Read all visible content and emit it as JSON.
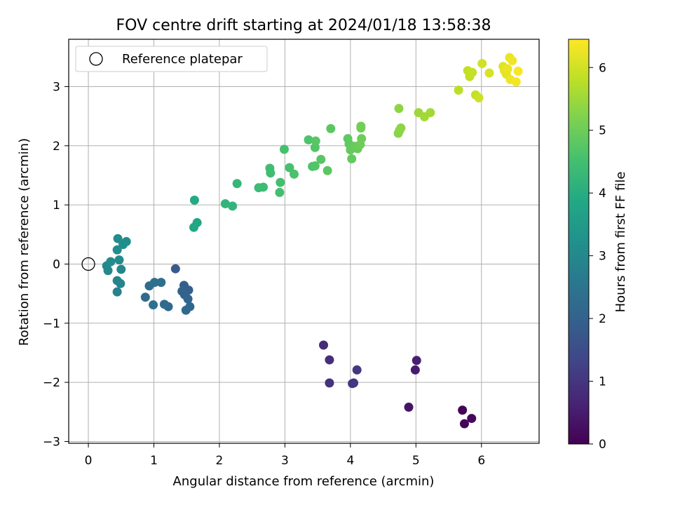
{
  "chart_data": {
    "type": "scatter",
    "title": "FOV centre drift starting at 2024/01/18 13:58:38",
    "xlabel": "Angular distance from reference (arcmin)",
    "ylabel": "Rotation from reference (arcmin)",
    "xlim": [
      -0.3,
      6.88
    ],
    "ylim": [
      -3.03,
      3.8
    ],
    "xticks": [
      0,
      1,
      2,
      3,
      4,
      5,
      6
    ],
    "yticks": [
      -3,
      -2,
      -1,
      0,
      1,
      2,
      3
    ],
    "grid": true,
    "legend": {
      "position": "top-left",
      "entries": [
        "Reference platepar"
      ]
    },
    "reference_point": {
      "x": 0,
      "y": 0
    },
    "colorbar": {
      "label": "Hours from first FF file",
      "min": 0,
      "max": 6.45,
      "ticks": [
        0,
        1,
        2,
        3,
        4,
        5,
        6
      ],
      "colormap": "viridis"
    },
    "points": [
      [
        5.71,
        -2.47,
        0.05
      ],
      [
        5.74,
        -2.7,
        0.1
      ],
      [
        5.85,
        -2.61,
        0.15
      ],
      [
        4.89,
        -2.42,
        0.35
      ],
      [
        4.99,
        -1.79,
        0.5
      ],
      [
        5.01,
        -1.63,
        0.55
      ],
      [
        3.59,
        -1.37,
        0.8
      ],
      [
        3.68,
        -1.62,
        0.85
      ],
      [
        3.68,
        -2.01,
        0.9
      ],
      [
        4.03,
        -2.02,
        0.95
      ],
      [
        4.05,
        -2.01,
        1.0
      ],
      [
        4.1,
        -1.79,
        1.05
      ],
      [
        1.33,
        -0.08,
        1.85
      ],
      [
        1.46,
        -0.36,
        1.9
      ],
      [
        1.53,
        -0.44,
        1.95
      ],
      [
        1.43,
        -0.46,
        2.0
      ],
      [
        1.47,
        -0.52,
        2.05
      ],
      [
        1.52,
        -0.59,
        2.1
      ],
      [
        1.55,
        -0.72,
        2.15
      ],
      [
        1.49,
        -0.78,
        2.2
      ],
      [
        1.22,
        -0.72,
        2.2
      ],
      [
        1.16,
        -0.68,
        2.25
      ],
      [
        0.87,
        -0.56,
        2.25
      ],
      [
        0.93,
        -0.37,
        2.3
      ],
      [
        1.01,
        -0.31,
        2.35
      ],
      [
        1.11,
        -0.31,
        2.35
      ],
      [
        0.99,
        -0.69,
        2.4
      ],
      [
        0.44,
        -0.47,
        2.85
      ],
      [
        0.44,
        -0.28,
        2.9
      ],
      [
        0.49,
        -0.33,
        2.9
      ],
      [
        0.5,
        -0.09,
        2.95
      ],
      [
        0.3,
        -0.11,
        3.0
      ],
      [
        0.28,
        -0.03,
        3.0
      ],
      [
        0.34,
        0.04,
        3.05
      ],
      [
        0.47,
        0.07,
        3.05
      ],
      [
        0.44,
        0.24,
        3.1
      ],
      [
        0.45,
        0.43,
        3.1
      ],
      [
        0.53,
        0.33,
        3.15
      ],
      [
        0.58,
        0.38,
        3.15
      ],
      [
        1.61,
        0.62,
        3.85
      ],
      [
        1.66,
        0.7,
        3.85
      ],
      [
        1.62,
        1.08,
        3.9
      ],
      [
        2.09,
        1.02,
        4.2
      ],
      [
        2.2,
        0.98,
        4.2
      ],
      [
        2.27,
        1.36,
        4.25
      ],
      [
        2.6,
        1.29,
        4.4
      ],
      [
        2.67,
        1.3,
        4.4
      ],
      [
        2.77,
        1.62,
        4.45
      ],
      [
        2.78,
        1.54,
        4.45
      ],
      [
        2.92,
        1.21,
        4.5
      ],
      [
        2.93,
        1.38,
        4.5
      ],
      [
        2.99,
        1.94,
        4.55
      ],
      [
        3.07,
        1.63,
        4.55
      ],
      [
        3.14,
        1.52,
        4.6
      ],
      [
        3.36,
        2.1,
        4.65
      ],
      [
        3.42,
        1.65,
        4.65
      ],
      [
        3.46,
        1.66,
        4.7
      ],
      [
        3.46,
        1.97,
        4.7
      ],
      [
        3.47,
        2.08,
        4.75
      ],
      [
        3.55,
        1.77,
        4.75
      ],
      [
        3.65,
        1.58,
        4.8
      ],
      [
        3.7,
        2.29,
        4.8
      ],
      [
        3.96,
        2.12,
        4.85
      ],
      [
        3.98,
        2.03,
        4.85
      ],
      [
        4.0,
        1.93,
        4.9
      ],
      [
        4.02,
        1.78,
        4.9
      ],
      [
        4.07,
        1.99,
        4.95
      ],
      [
        4.11,
        1.95,
        4.95
      ],
      [
        4.15,
        2.02,
        5.0
      ],
      [
        4.17,
        2.12,
        5.0
      ],
      [
        4.16,
        2.3,
        5.05
      ],
      [
        4.16,
        2.33,
        5.05
      ],
      [
        4.73,
        2.21,
        5.3
      ],
      [
        4.75,
        2.26,
        5.3
      ],
      [
        4.77,
        2.3,
        5.35
      ],
      [
        4.74,
        2.63,
        5.35
      ],
      [
        5.04,
        2.56,
        5.5
      ],
      [
        5.13,
        2.49,
        5.55
      ],
      [
        5.22,
        2.56,
        5.55
      ],
      [
        5.65,
        2.94,
        5.8
      ],
      [
        5.79,
        3.27,
        5.85
      ],
      [
        5.82,
        3.17,
        5.85
      ],
      [
        5.86,
        3.24,
        5.9
      ],
      [
        5.91,
        2.86,
        5.9
      ],
      [
        5.96,
        2.81,
        5.95
      ],
      [
        6.01,
        3.39,
        6.0
      ],
      [
        6.12,
        3.23,
        6.05
      ],
      [
        6.33,
        3.34,
        6.15
      ],
      [
        6.35,
        3.27,
        6.2
      ],
      [
        6.38,
        3.21,
        6.2
      ],
      [
        6.4,
        3.3,
        6.25
      ],
      [
        6.43,
        3.49,
        6.25
      ],
      [
        6.44,
        3.12,
        6.3
      ],
      [
        6.47,
        3.44,
        6.3
      ],
      [
        6.53,
        3.08,
        6.35
      ],
      [
        6.56,
        3.26,
        6.4
      ]
    ]
  }
}
